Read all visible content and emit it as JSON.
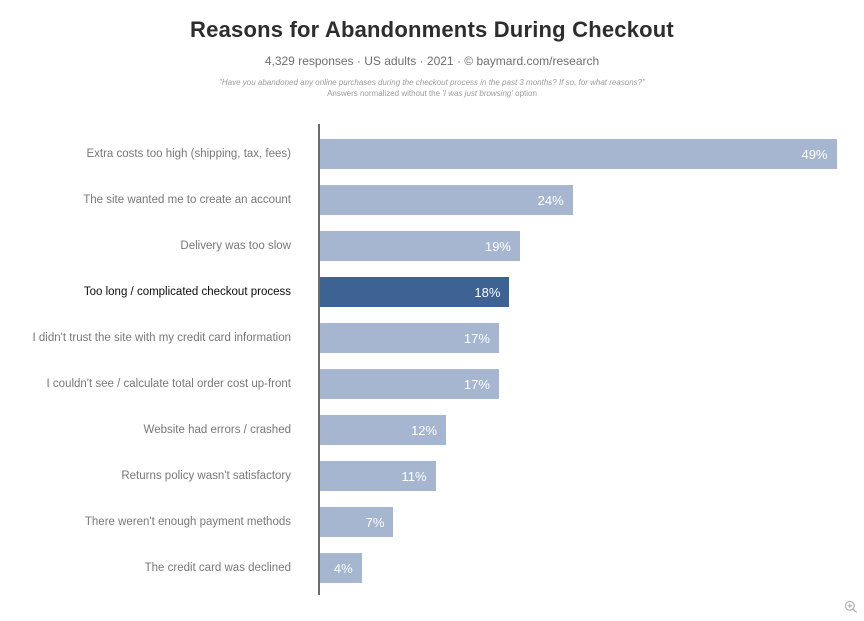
{
  "header": {
    "title": "Reasons for Abandonments During Checkout",
    "subtitle": "4,329 responses  ·  US adults  ·  2021  ·  ©  baymard.com/research",
    "footnote_line1": "\"Have you abandoned any online purchases during the checkout process in the past 3 months? If so, for what reasons?\"",
    "footnote_line2_prefix": "Answers normalized without the ",
    "footnote_line2_italic": "'I was just browsing'",
    "footnote_line2_suffix": " option"
  },
  "chart_data": {
    "type": "bar",
    "orientation": "horizontal",
    "title": "Reasons for Abandonments During Checkout",
    "categories": [
      "Extra costs too high (shipping, tax, fees)",
      "The site wanted me to create an account",
      "Delivery was too slow",
      "Too long / complicated checkout process",
      "I didn't trust the site with my credit card information",
      "I couldn't see / calculate total order cost up-front",
      "Website had errors / crashed",
      "Returns policy wasn't satisfactory",
      "There weren't enough payment methods",
      "The credit card was declined"
    ],
    "values": [
      49,
      24,
      19,
      18,
      17,
      17,
      12,
      11,
      7,
      4
    ],
    "value_labels": [
      "49%",
      "24%",
      "19%",
      "18%",
      "17%",
      "17%",
      "12%",
      "11%",
      "7%",
      "4%"
    ],
    "highlighted_index": 3,
    "xlabel": "",
    "ylabel": "",
    "xlim": [
      0,
      51.5
    ],
    "grid": false,
    "legend": false,
    "colors": {
      "bar": "#a6b6d0",
      "bar_highlight": "#3d6294",
      "value_label": "#ffffff",
      "category_label": "#787878",
      "category_label_highlight": "#0c0c0c",
      "axis": "#6b6b6b"
    }
  },
  "controls": {
    "zoom_icon": "magnifier-plus"
  }
}
